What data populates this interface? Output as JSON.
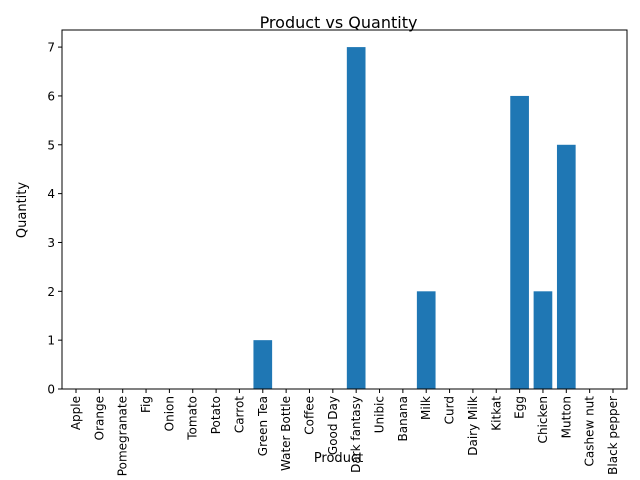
{
  "chart_data": {
    "type": "bar",
    "title": "Product vs Quantity",
    "xlabel": "Product",
    "ylabel": "Quantity",
    "categories": [
      "Apple",
      "Orange",
      "Pomegranate",
      "Fig",
      "Onion",
      "Tomato",
      "Potato",
      "Carrot",
      "Green Tea",
      "Water Bottle",
      "Coffee",
      "Good Day",
      "Dark fantasy",
      "Unibic",
      "Banana",
      "Milk",
      "Curd",
      "Dairy Milk",
      "Kitkat",
      "Egg",
      "Chicken",
      "Mutton",
      "Cashew nut",
      "Black pepper"
    ],
    "values": [
      0,
      0,
      0,
      0,
      0,
      0,
      0,
      0,
      1,
      0,
      0,
      0,
      7,
      0,
      0,
      2,
      0,
      0,
      0,
      6,
      2,
      5,
      0,
      0
    ],
    "ylim": [
      0,
      7.35
    ],
    "yticks": [
      0,
      1,
      2,
      3,
      4,
      5,
      6,
      7
    ],
    "bar_color": "#1f77b4",
    "grid": false,
    "legend": "none"
  }
}
